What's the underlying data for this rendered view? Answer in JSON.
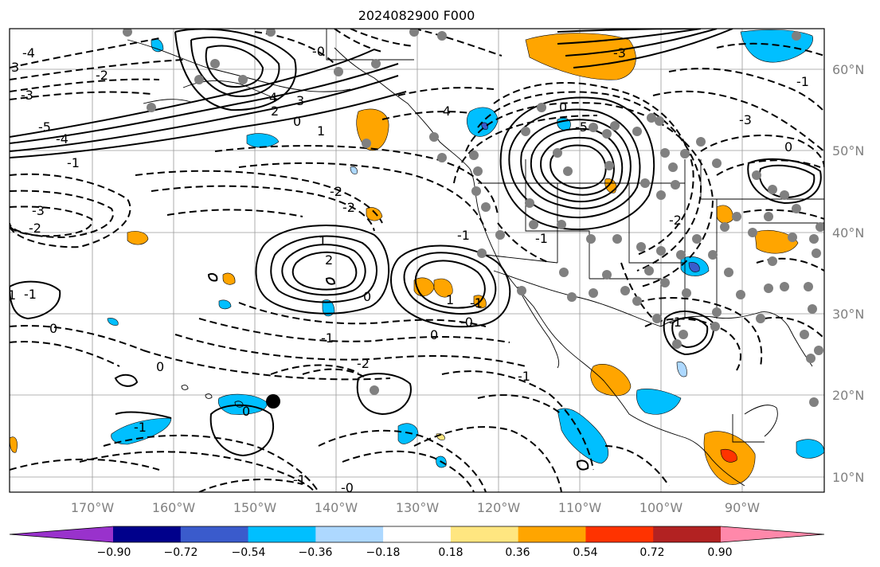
{
  "title": "2024082900 F000",
  "map": {
    "lat_labels": [
      "60°N",
      "50°N",
      "40°N",
      "30°N",
      "20°N",
      "10°N"
    ],
    "lon_labels": [
      "170°W",
      "160°W",
      "150°W",
      "140°W",
      "130°W",
      "120°W",
      "110°W",
      "100°W",
      "90°W"
    ],
    "contour_labels": [
      "-4",
      "3",
      "-2",
      "-3",
      "-5",
      "-4",
      "-1",
      "-3",
      "-2",
      "-1",
      "-1",
      "-0",
      "4",
      "2",
      "3",
      "0",
      "1",
      "-4",
      "0",
      "-5",
      "-3",
      "-2",
      "-2",
      "1",
      "2",
      "-1",
      "-1",
      "1",
      "-1",
      "-0",
      "-2",
      "0",
      "-1",
      "0",
      "0",
      "-1",
      "1",
      "-1",
      "-1",
      "0",
      "0",
      "-2",
      "-0",
      "-1",
      "-3",
      "0"
    ]
  },
  "colorbar": {
    "tick_labels": [
      "−0.90",
      "−0.72",
      "−0.54",
      "−0.36",
      "−0.18",
      "0.18",
      "0.36",
      "0.54",
      "0.72",
      "0.90"
    ],
    "colors": [
      "#9932cc",
      "#00008b",
      "#3a5bcc",
      "#00bfff",
      "#add8ff",
      "#ffffff",
      "#ffe680",
      "#ffa500",
      "#ff3300",
      "#b22222",
      "#ff88aa"
    ]
  }
}
